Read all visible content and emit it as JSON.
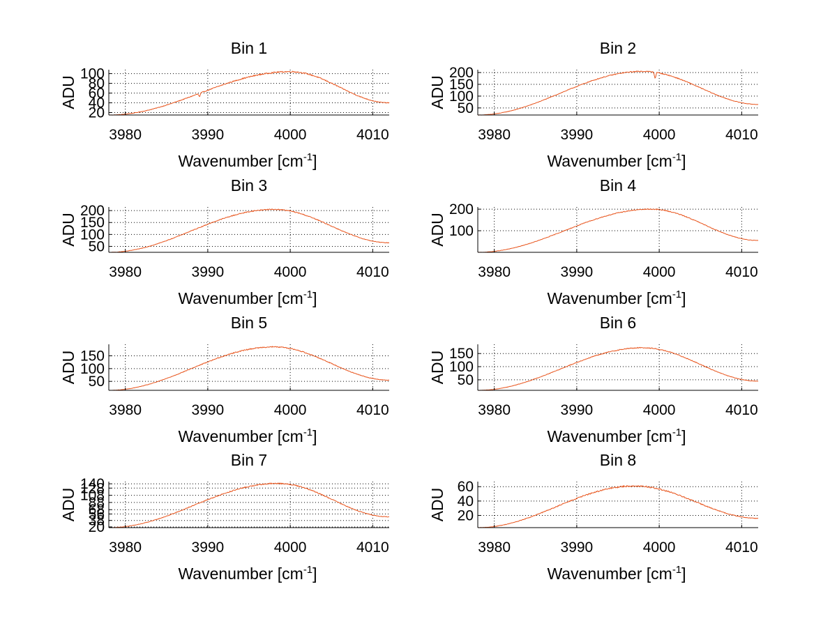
{
  "chart_data": [
    {
      "type": "line",
      "title": "Bin 1",
      "xlabel": "Wavenumber [cm",
      "xlabel_sup": "-1",
      "xlabel_end": "]",
      "ylabel": "ADU",
      "xlim": [
        3978,
        4012
      ],
      "ylim": [
        15,
        108
      ],
      "xticks": [
        3980,
        3990,
        4000,
        4010
      ],
      "yticks": [
        20,
        40,
        60,
        80,
        100
      ],
      "grid": true,
      "color": "#e8541c",
      "curve": {
        "x_start": 3978,
        "x_end": 4012,
        "peak_x": 4000,
        "peak_y": 104,
        "left_y": 15,
        "right_y": 40
      },
      "dips": [
        {
          "x": 3989,
          "depth": 7
        }
      ],
      "noise": 1.2
    },
    {
      "type": "line",
      "title": "Bin 2",
      "xlabel": "Wavenumber [cm",
      "xlabel_sup": "-1",
      "xlabel_end": "]",
      "ylabel": "ADU",
      "xlim": [
        3978,
        4012
      ],
      "ylim": [
        20,
        212
      ],
      "xticks": [
        3980,
        3990,
        4000,
        4010
      ],
      "yticks": [
        50,
        100,
        150,
        200
      ],
      "grid": true,
      "color": "#e8541c",
      "curve": {
        "x_start": 3978,
        "x_end": 4012,
        "peak_x": 3998,
        "peak_y": 205,
        "left_y": 20,
        "right_y": 65
      },
      "dips": [
        {
          "x": 3999.5,
          "depth": 25
        }
      ],
      "noise": 2.0
    },
    {
      "type": "line",
      "title": "Bin 3",
      "xlabel": "Wavenumber [cm",
      "xlabel_sup": "-1",
      "xlabel_end": "]",
      "ylabel": "ADU",
      "xlim": [
        3978,
        4012
      ],
      "ylim": [
        25,
        215
      ],
      "xticks": [
        3980,
        3990,
        4000,
        4010
      ],
      "yticks": [
        50,
        100,
        150,
        200
      ],
      "grid": true,
      "color": "#e8541c",
      "curve": {
        "x_start": 3978,
        "x_end": 4012,
        "peak_x": 3998,
        "peak_y": 205,
        "left_y": 25,
        "right_y": 65
      },
      "dips": [],
      "noise": 2.0
    },
    {
      "type": "line",
      "title": "Bin 4",
      "xlabel": "Wavenumber [cm",
      "xlabel_sup": "-1",
      "xlabel_end": "]",
      "ylabel": "ADU",
      "xlim": [
        3978,
        4012
      ],
      "ylim": [
        0,
        210
      ],
      "xticks": [
        3980,
        3990,
        4000,
        4010
      ],
      "yticks": [
        100,
        200
      ],
      "grid": true,
      "color": "#e8541c",
      "curve": {
        "x_start": 3978,
        "x_end": 4012,
        "peak_x": 3999,
        "peak_y": 200,
        "left_y": 0,
        "right_y": 55
      },
      "dips": [],
      "noise": 2.0
    },
    {
      "type": "line",
      "title": "Bin 5",
      "xlabel": "Wavenumber [cm",
      "xlabel_sup": "-1",
      "xlabel_end": "]",
      "ylabel": "ADU",
      "xlim": [
        3978,
        4012
      ],
      "ylim": [
        15,
        195
      ],
      "xticks": [
        3980,
        3990,
        4000,
        4010
      ],
      "yticks": [
        50,
        100,
        150
      ],
      "grid": true,
      "color": "#e8541c",
      "curve": {
        "x_start": 3978,
        "x_end": 4012,
        "peak_x": 3998,
        "peak_y": 185,
        "left_y": 15,
        "right_y": 55
      },
      "dips": [],
      "noise": 2.0
    },
    {
      "type": "line",
      "title": "Bin 6",
      "xlabel": "Wavenumber [cm",
      "xlabel_sup": "-1",
      "xlabel_end": "]",
      "ylabel": "ADU",
      "xlim": [
        3978,
        4012
      ],
      "ylim": [
        10,
        185
      ],
      "xticks": [
        3980,
        3990,
        4000,
        4010
      ],
      "yticks": [
        50,
        100,
        150
      ],
      "grid": true,
      "color": "#e8541c",
      "curve": {
        "x_start": 3978,
        "x_end": 4012,
        "peak_x": 3998,
        "peak_y": 172,
        "left_y": 10,
        "right_y": 45
      },
      "dips": [],
      "noise": 1.8
    },
    {
      "type": "line",
      "title": "Bin 7",
      "xlabel": "Wavenumber [cm",
      "xlabel_sup": "-1",
      "xlabel_end": "]",
      "ylabel": "ADU",
      "xlim": [
        3978,
        4012
      ],
      "ylim": [
        18,
        146
      ],
      "xticks": [
        3980,
        3990,
        4000,
        4010
      ],
      "yticks": [
        20,
        38,
        56,
        68,
        88,
        108,
        128,
        140
      ],
      "grid": true,
      "color": "#e8541c",
      "curve": {
        "x_start": 3978,
        "x_end": 4012,
        "peak_x": 3998.5,
        "peak_y": 141,
        "left_y": 18,
        "right_y": 48
      },
      "dips": [],
      "noise": 1.6
    },
    {
      "type": "line",
      "title": "Bin 8",
      "xlabel": "Wavenumber [cm",
      "xlabel_sup": "-1",
      "xlabel_end": "]",
      "ylabel": "ADU",
      "xlim": [
        3978,
        4012
      ],
      "ylim": [
        3,
        67
      ],
      "xticks": [
        3980,
        3990,
        4000,
        4010
      ],
      "yticks": [
        20,
        40,
        60
      ],
      "grid": true,
      "color": "#e8541c",
      "curve": {
        "x_start": 3978,
        "x_end": 4012,
        "peak_x": 3997,
        "peak_y": 61,
        "left_y": 3,
        "right_y": 16
      },
      "dips": [],
      "noise": 1.0
    }
  ]
}
